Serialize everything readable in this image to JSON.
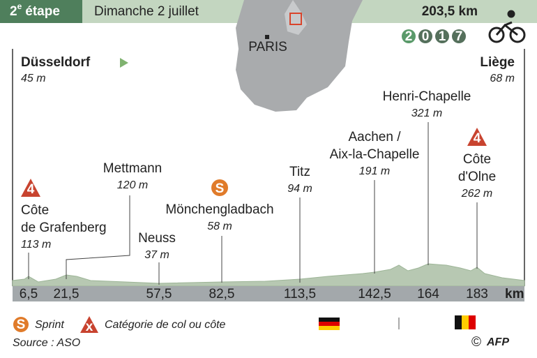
{
  "header": {
    "stage_number": "2",
    "stage_sup": "e",
    "stage_word": "étape",
    "date": "Dimanche 2 juillet",
    "distance": "203,5 km",
    "year_digits": [
      "2",
      "0",
      "1",
      "7"
    ]
  },
  "map": {
    "city": "PARIS"
  },
  "start": {
    "name": "Düsseldorf",
    "altitude": "45 m"
  },
  "finish": {
    "name": "Liège",
    "altitude": "68 m"
  },
  "points": [
    {
      "lines": [
        "Côte",
        "de Grafenberg"
      ],
      "altitude": "113 m",
      "km": "6,5",
      "icon": "4"
    },
    {
      "lines": [
        "Mettmann"
      ],
      "altitude": "120 m",
      "km": "21,5"
    },
    {
      "lines": [
        "Neuss"
      ],
      "altitude": "37 m",
      "km": "57,5"
    },
    {
      "lines": [
        "Mönchengladbach"
      ],
      "altitude": "58 m",
      "km": "82,5",
      "icon": "S"
    },
    {
      "lines": [
        "Titz"
      ],
      "altitude": "94 m",
      "km": "113,5"
    },
    {
      "lines": [
        "Aachen /",
        "Aix-la-Chapelle"
      ],
      "altitude": "191 m",
      "km": "142,5"
    },
    {
      "lines": [
        "Henri-Chapelle"
      ],
      "altitude": "321 m",
      "km": "164"
    },
    {
      "lines": [
        "Côte",
        "d'Olne"
      ],
      "altitude": "262 m",
      "km": "183",
      "icon": "4"
    }
  ],
  "km_unit": "km",
  "legend": {
    "sprint_icon": "S",
    "sprint": "Sprint",
    "category_icon": "x",
    "category": "Catégorie de col ou côte"
  },
  "source": "Source : ASO",
  "copyright": "©",
  "credit": "AFP"
}
